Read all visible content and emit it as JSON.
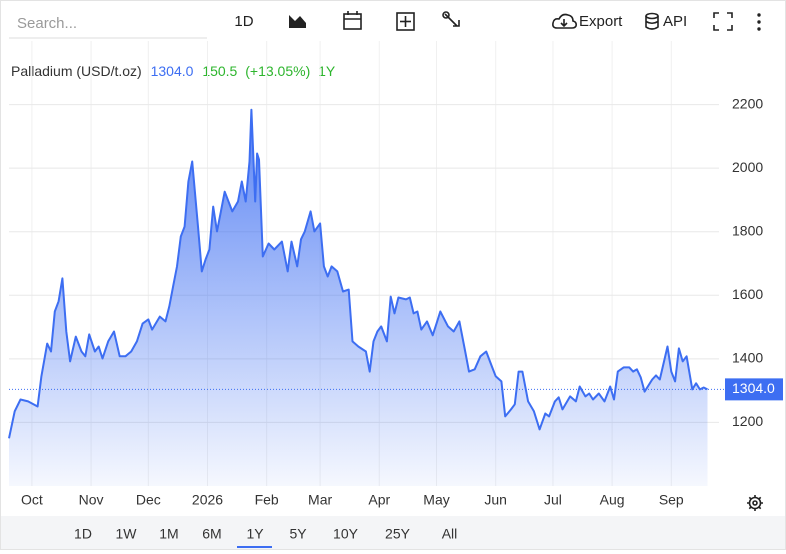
{
  "toolbar": {
    "search_placeholder": "Search...",
    "interval": "1D",
    "export": "Export",
    "api": "API"
  },
  "ranges": {
    "items": [
      "1D",
      "1W",
      "1M",
      "6M",
      "1Y",
      "5Y",
      "10Y",
      "25Y",
      "All"
    ],
    "active": "1Y"
  },
  "chart_data": {
    "type": "area",
    "series": [
      {
        "name": "Palladium (USD/t.oz)",
        "color": "#3d6ef2",
        "values": [
          1150,
          1235,
          1272,
          1266,
          1250,
          1345,
          1448,
          1423,
          1549,
          1581,
          1653,
          1486,
          1392,
          1470,
          1423,
          1408,
          1477,
          1423,
          1439,
          1401,
          1455,
          1486,
          1408,
          1408,
          1423,
          1455,
          1511,
          1524,
          1492,
          1533,
          1518,
          1565,
          1628,
          1691,
          1785,
          1816,
          1958,
          2021,
          1816,
          1675,
          1713,
          1744,
          1879,
          1801,
          1864,
          1926,
          1895,
          1864,
          1895,
          1958,
          1895,
          2021,
          2184,
          1895,
          2046,
          2027,
          1722,
          1763,
          1744,
          1769,
          1675,
          1769,
          1691,
          1776,
          1801,
          1864,
          1801,
          1826,
          1691,
          1659,
          1691,
          1675,
          1612,
          1618,
          1455,
          1439,
          1423,
          1360,
          1455,
          1486,
          1502,
          1455,
          1596,
          1543,
          1593,
          1587,
          1593,
          1543,
          1549,
          1492,
          1518,
          1474,
          1511,
          1549,
          1502,
          1486,
          1518,
          1423,
          1360,
          1367,
          1408,
          1423,
          1376,
          1345,
          1329,
          1219,
          1241,
          1257,
          1360,
          1360,
          1266,
          1235,
          1178,
          1228,
          1219,
          1266,
          1279,
          1241,
          1282,
          1266,
          1313,
          1282,
          1291,
          1272,
          1291,
          1266,
          1313,
          1272,
          1360,
          1373,
          1373,
          1360,
          1367,
          1342,
          1297,
          1335,
          1348,
          1335,
          1439,
          1360,
          1329,
          1433,
          1392,
          1408,
          1304,
          1323,
          1304,
          1310,
          1304
        ]
      }
    ],
    "x": [
      -12,
      -9,
      -6,
      -2,
      3,
      5,
      8,
      10,
      12,
      14,
      16,
      18,
      20,
      23,
      26,
      28,
      30,
      33,
      35,
      37,
      40,
      43,
      46,
      49,
      52,
      55,
      58,
      61,
      63,
      67,
      70,
      72,
      74,
      76,
      78,
      80,
      82,
      84,
      87,
      89,
      91,
      93,
      95,
      97,
      99,
      101,
      103,
      105,
      108,
      110,
      112,
      114,
      115,
      117,
      118,
      119,
      121,
      124,
      127,
      131,
      134,
      136,
      139,
      141,
      143,
      146,
      148,
      151,
      153,
      155,
      157,
      160,
      163,
      166,
      168,
      171,
      175,
      177,
      179,
      181,
      183,
      186,
      188,
      190,
      192,
      196,
      198,
      200,
      202,
      204,
      207,
      210,
      212,
      214,
      218,
      221,
      224,
      227,
      229,
      232,
      235,
      238,
      241,
      243,
      246,
      248,
      251,
      253,
      255,
      257,
      260,
      263,
      266,
      269,
      271,
      274,
      276,
      278,
      282,
      285,
      287,
      290,
      292,
      294,
      297,
      300,
      303,
      305,
      307,
      310,
      313,
      315,
      317,
      319,
      321,
      325,
      327,
      329,
      333,
      335,
      337,
      339,
      341,
      343,
      346,
      348,
      350,
      352,
      354
    ],
    "xlim": [
      -12,
      360
    ],
    "xticks": [
      {
        "value": 0,
        "label": "Oct"
      },
      {
        "value": 31,
        "label": "Nov"
      },
      {
        "value": 61,
        "label": "Dec"
      },
      {
        "value": 92,
        "label": "2026"
      },
      {
        "value": 123,
        "label": "Feb"
      },
      {
        "value": 151,
        "label": "Mar"
      },
      {
        "value": 182,
        "label": "Apr"
      },
      {
        "value": 212,
        "label": "May"
      },
      {
        "value": 243,
        "label": "Jun"
      },
      {
        "value": 273,
        "label": "Jul"
      },
      {
        "value": 304,
        "label": "Aug"
      },
      {
        "value": 335,
        "label": "Sep"
      }
    ],
    "ylim": [
      1000,
      2400
    ],
    "yticks": [
      1200,
      1400,
      1600,
      1800,
      2000,
      2200
    ],
    "grid": true,
    "current": {
      "value": 1304,
      "label": "1304.0"
    },
    "change": "150.5",
    "change_percent": "(+13.05%)",
    "period": "1Y"
  }
}
